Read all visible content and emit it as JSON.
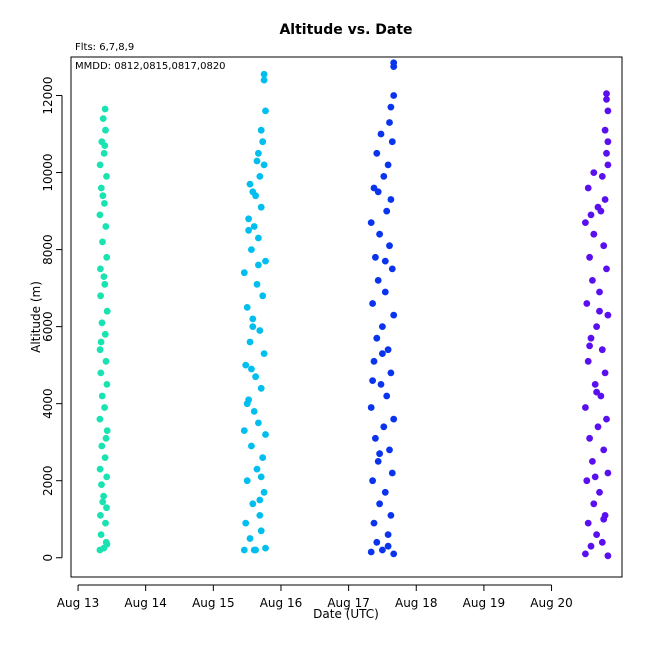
{
  "chart_data": {
    "type": "scatter",
    "title": "Altitude  vs. Date",
    "annotations": [
      "Flts: 6,7,8,9",
      "MMDD: 0812,0815,0817,0820"
    ],
    "xlabel": "Date (UTC)",
    "ylabel": "Altitude (m)",
    "x_ticks": [
      "Aug 13",
      "Aug 14",
      "Aug 15",
      "Aug 16",
      "Aug 17",
      "Aug 18",
      "Aug 19",
      "Aug 20"
    ],
    "y_ticks": [
      0,
      2000,
      4000,
      6000,
      8000,
      10000,
      12000
    ],
    "xlim": [
      "2023-08-12T21:30",
      "2023-08-21T01:00"
    ],
    "ylim": [
      -500,
      13000
    ],
    "grid": false,
    "series": [
      {
        "color": "#19e3b0",
        "points": [
          [
            "2023-08-13T07:45",
            200
          ],
          [
            "2023-08-13T09:10",
            250
          ],
          [
            "2023-08-13T10:15",
            350
          ],
          [
            "2023-08-13T08:10",
            600
          ],
          [
            "2023-08-13T09:45",
            900
          ],
          [
            "2023-08-13T07:55",
            1100
          ],
          [
            "2023-08-13T10:05",
            1300
          ],
          [
            "2023-08-13T09:05",
            1600
          ],
          [
            "2023-08-13T08:20",
            1900
          ],
          [
            "2023-08-13T10:10",
            2100
          ],
          [
            "2023-08-13T07:50",
            2300
          ],
          [
            "2023-08-13T09:35",
            2600
          ],
          [
            "2023-08-13T08:25",
            2900
          ],
          [
            "2023-08-13T10:20",
            3300
          ],
          [
            "2023-08-13T07:45",
            3600
          ],
          [
            "2023-08-13T09:25",
            3900
          ],
          [
            "2023-08-13T08:35",
            4200
          ],
          [
            "2023-08-13T10:15",
            4500
          ],
          [
            "2023-08-13T08:05",
            4800
          ],
          [
            "2023-08-13T09:55",
            5100
          ],
          [
            "2023-08-13T07:50",
            5400
          ],
          [
            "2023-08-13T09:40",
            5800
          ],
          [
            "2023-08-13T08:30",
            6100
          ],
          [
            "2023-08-13T10:20",
            6400
          ],
          [
            "2023-08-13T08:00",
            6800
          ],
          [
            "2023-08-13T09:30",
            7100
          ],
          [
            "2023-08-13T07:55",
            7500
          ],
          [
            "2023-08-13T10:10",
            7800
          ],
          [
            "2023-08-13T08:40",
            8200
          ],
          [
            "2023-08-13T09:50",
            8600
          ],
          [
            "2023-08-13T07:45",
            8900
          ],
          [
            "2023-08-13T09:20",
            9200
          ],
          [
            "2023-08-13T08:15",
            9600
          ],
          [
            "2023-08-13T10:05",
            9900
          ],
          [
            "2023-08-13T07:50",
            10200
          ],
          [
            "2023-08-13T09:15",
            10500
          ],
          [
            "2023-08-13T08:25",
            10800
          ],
          [
            "2023-08-13T09:45",
            11100
          ],
          [
            "2023-08-13T08:55",
            11400
          ],
          [
            "2023-08-13T09:35",
            11650
          ],
          [
            "2023-08-13T10:00",
            400
          ],
          [
            "2023-08-13T08:45",
            1450
          ],
          [
            "2023-08-13T09:55",
            3100
          ],
          [
            "2023-08-13T08:10",
            5600
          ],
          [
            "2023-08-13T09:10",
            7300
          ],
          [
            "2023-08-13T08:50",
            9400
          ],
          [
            "2023-08-13T09:30",
            10700
          ]
        ]
      },
      {
        "color": "#00bfee",
        "points": [
          [
            "2023-08-15T11:00",
            200
          ],
          [
            "2023-08-15T18:30",
            250
          ],
          [
            "2023-08-15T15:00",
            200
          ],
          [
            "2023-08-15T13:00",
            500
          ],
          [
            "2023-08-15T17:00",
            700
          ],
          [
            "2023-08-15T11:30",
            900
          ],
          [
            "2023-08-15T16:30",
            1100
          ],
          [
            "2023-08-15T14:00",
            1400
          ],
          [
            "2023-08-15T18:00",
            1700
          ],
          [
            "2023-08-15T12:00",
            2000
          ],
          [
            "2023-08-15T15:30",
            2300
          ],
          [
            "2023-08-15T17:30",
            2600
          ],
          [
            "2023-08-15T13:30",
            2900
          ],
          [
            "2023-08-15T11:00",
            3300
          ],
          [
            "2023-08-15T16:00",
            3500
          ],
          [
            "2023-08-15T18:30",
            3200
          ],
          [
            "2023-08-15T14:30",
            3800
          ],
          [
            "2023-08-15T12:30",
            4100
          ],
          [
            "2023-08-15T17:00",
            4400
          ],
          [
            "2023-08-15T15:00",
            4700
          ],
          [
            "2023-08-15T11:30",
            5000
          ],
          [
            "2023-08-15T18:00",
            5300
          ],
          [
            "2023-08-15T13:00",
            5600
          ],
          [
            "2023-08-15T16:30",
            5900
          ],
          [
            "2023-08-15T14:00",
            6200
          ],
          [
            "2023-08-15T12:00",
            6500
          ],
          [
            "2023-08-15T17:30",
            6800
          ],
          [
            "2023-08-15T15:30",
            7100
          ],
          [
            "2023-08-15T11:00",
            7400
          ],
          [
            "2023-08-15T18:30",
            7700
          ],
          [
            "2023-08-15T13:30",
            8000
          ],
          [
            "2023-08-15T16:00",
            8300
          ],
          [
            "2023-08-15T14:30",
            8600
          ],
          [
            "2023-08-15T12:30",
            8800
          ],
          [
            "2023-08-15T17:00",
            9100
          ],
          [
            "2023-08-15T15:00",
            9400
          ],
          [
            "2023-08-15T13:00",
            9700
          ],
          [
            "2023-08-15T16:30",
            9900
          ],
          [
            "2023-08-15T14:00",
            9500
          ],
          [
            "2023-08-15T18:00",
            10200
          ],
          [
            "2023-08-15T16:00",
            10500
          ],
          [
            "2023-08-15T17:30",
            10800
          ],
          [
            "2023-08-15T15:30",
            10300
          ],
          [
            "2023-08-15T17:00",
            11100
          ],
          [
            "2023-08-15T18:30",
            11600
          ],
          [
            "2023-08-15T18:00",
            12400
          ],
          [
            "2023-08-15T18:00",
            12550
          ],
          [
            "2023-08-15T12:00",
            4000
          ],
          [
            "2023-08-15T14:00",
            6000
          ],
          [
            "2023-08-15T16:00",
            7600
          ],
          [
            "2023-08-15T12:30",
            8500
          ],
          [
            "2023-08-15T14:30",
            200
          ],
          [
            "2023-08-15T16:30",
            1500
          ],
          [
            "2023-08-15T13:30",
            4900
          ],
          [
            "2023-08-15T17:00",
            2100
          ]
        ]
      },
      {
        "color": "#0a33ee",
        "points": [
          [
            "2023-08-17T08:00",
            150
          ],
          [
            "2023-08-17T12:00",
            200
          ],
          [
            "2023-08-17T16:00",
            100
          ],
          [
            "2023-08-17T10:00",
            400
          ],
          [
            "2023-08-17T14:00",
            600
          ],
          [
            "2023-08-17T09:00",
            900
          ],
          [
            "2023-08-17T15:00",
            1100
          ],
          [
            "2023-08-17T11:00",
            1400
          ],
          [
            "2023-08-17T13:00",
            1700
          ],
          [
            "2023-08-17T08:30",
            2000
          ],
          [
            "2023-08-17T15:30",
            2200
          ],
          [
            "2023-08-17T10:30",
            2500
          ],
          [
            "2023-08-17T14:30",
            2800
          ],
          [
            "2023-08-17T09:30",
            3100
          ],
          [
            "2023-08-17T12:30",
            3400
          ],
          [
            "2023-08-17T16:00",
            3600
          ],
          [
            "2023-08-17T08:00",
            3900
          ],
          [
            "2023-08-17T13:30",
            4200
          ],
          [
            "2023-08-17T11:30",
            4500
          ],
          [
            "2023-08-17T15:00",
            4800
          ],
          [
            "2023-08-17T09:00",
            5100
          ],
          [
            "2023-08-17T14:00",
            5400
          ],
          [
            "2023-08-17T10:00",
            5700
          ],
          [
            "2023-08-17T12:00",
            6000
          ],
          [
            "2023-08-17T16:00",
            6300
          ],
          [
            "2023-08-17T08:30",
            6600
          ],
          [
            "2023-08-17T13:00",
            6900
          ],
          [
            "2023-08-17T10:30",
            7200
          ],
          [
            "2023-08-17T15:30",
            7500
          ],
          [
            "2023-08-17T09:30",
            7800
          ],
          [
            "2023-08-17T14:30",
            8100
          ],
          [
            "2023-08-17T11:00",
            8400
          ],
          [
            "2023-08-17T08:00",
            8700
          ],
          [
            "2023-08-17T13:30",
            9000
          ],
          [
            "2023-08-17T15:00",
            9300
          ],
          [
            "2023-08-17T09:00",
            9600
          ],
          [
            "2023-08-17T12:30",
            9900
          ],
          [
            "2023-08-17T14:00",
            10200
          ],
          [
            "2023-08-17T10:00",
            10500
          ],
          [
            "2023-08-17T15:30",
            10800
          ],
          [
            "2023-08-17T11:30",
            11000
          ],
          [
            "2023-08-17T14:30",
            11300
          ],
          [
            "2023-08-17T15:00",
            11700
          ],
          [
            "2023-08-17T16:00",
            12000
          ],
          [
            "2023-08-17T16:00",
            12750
          ],
          [
            "2023-08-17T16:00",
            12850
          ],
          [
            "2023-08-17T12:00",
            5300
          ],
          [
            "2023-08-17T11:00",
            2700
          ],
          [
            "2023-08-17T13:00",
            7700
          ],
          [
            "2023-08-17T10:30",
            9500
          ],
          [
            "2023-08-17T14:00",
            300
          ],
          [
            "2023-08-17T08:30",
            4600
          ]
        ]
      },
      {
        "color": "#5a10ee",
        "points": [
          [
            "2023-08-20T12:00",
            100
          ],
          [
            "2023-08-20T20:00",
            50
          ],
          [
            "2023-08-20T18:00",
            400
          ],
          [
            "2023-08-20T14:00",
            300
          ],
          [
            "2023-08-20T16:00",
            600
          ],
          [
            "2023-08-20T13:00",
            900
          ],
          [
            "2023-08-20T19:00",
            1100
          ],
          [
            "2023-08-20T15:00",
            1400
          ],
          [
            "2023-08-20T17:00",
            1700
          ],
          [
            "2023-08-20T12:30",
            2000
          ],
          [
            "2023-08-20T20:00",
            2200
          ],
          [
            "2023-08-20T14:30",
            2500
          ],
          [
            "2023-08-20T18:30",
            2800
          ],
          [
            "2023-08-20T13:30",
            3100
          ],
          [
            "2023-08-20T16:30",
            3400
          ],
          [
            "2023-08-20T19:30",
            3600
          ],
          [
            "2023-08-20T12:00",
            3900
          ],
          [
            "2023-08-20T17:30",
            4200
          ],
          [
            "2023-08-20T15:30",
            4500
          ],
          [
            "2023-08-20T19:00",
            4800
          ],
          [
            "2023-08-20T13:00",
            5100
          ],
          [
            "2023-08-20T18:00",
            5400
          ],
          [
            "2023-08-20T14:00",
            5700
          ],
          [
            "2023-08-20T16:00",
            6000
          ],
          [
            "2023-08-20T20:00",
            6300
          ],
          [
            "2023-08-20T12:30",
            6600
          ],
          [
            "2023-08-20T17:00",
            6900
          ],
          [
            "2023-08-20T14:30",
            7200
          ],
          [
            "2023-08-20T19:30",
            7500
          ],
          [
            "2023-08-20T13:30",
            7800
          ],
          [
            "2023-08-20T18:30",
            8100
          ],
          [
            "2023-08-20T15:00",
            8400
          ],
          [
            "2023-08-20T12:00",
            8700
          ],
          [
            "2023-08-20T17:30",
            9000
          ],
          [
            "2023-08-20T19:00",
            9300
          ],
          [
            "2023-08-20T13:00",
            9600
          ],
          [
            "2023-08-20T16:30",
            9100
          ],
          [
            "2023-08-20T18:00",
            9900
          ],
          [
            "2023-08-20T20:00",
            10200
          ],
          [
            "2023-08-20T19:30",
            10500
          ],
          [
            "2023-08-20T20:00",
            10800
          ],
          [
            "2023-08-20T19:00",
            11100
          ],
          [
            "2023-08-20T20:00",
            11600
          ],
          [
            "2023-08-20T19:30",
            11900
          ],
          [
            "2023-08-20T19:30",
            12050
          ],
          [
            "2023-08-20T15:30",
            2100
          ],
          [
            "2023-08-20T16:00",
            4300
          ],
          [
            "2023-08-20T14:00",
            8900
          ],
          [
            "2023-08-20T17:00",
            6400
          ],
          [
            "2023-08-20T18:30",
            1000
          ],
          [
            "2023-08-20T15:00",
            10000
          ],
          [
            "2023-08-20T13:30",
            5500
          ]
        ]
      }
    ]
  }
}
